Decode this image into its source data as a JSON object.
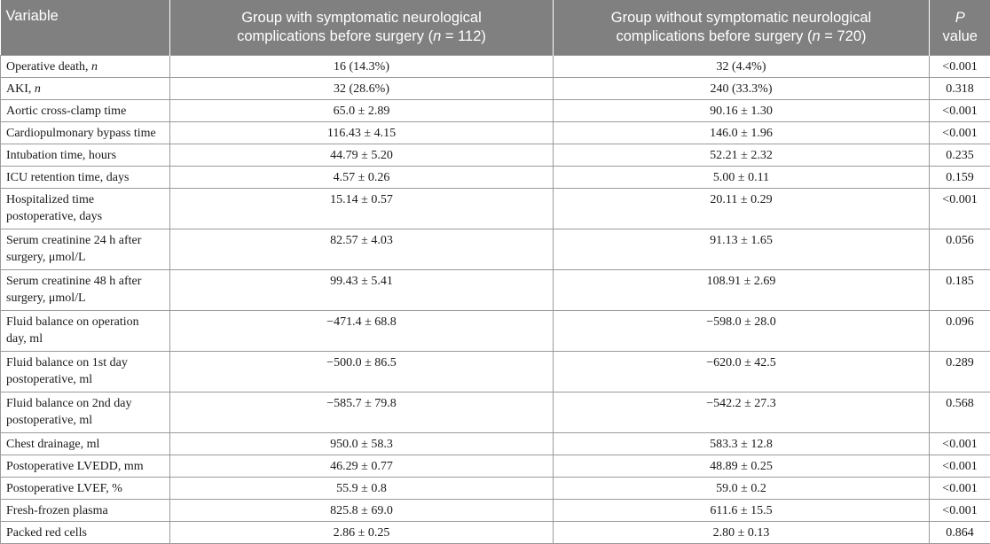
{
  "table": {
    "headers": {
      "variable": "Variable",
      "group_with_line1": "Group with symptomatic neurological",
      "group_with_line2_pre": "complications before surgery (",
      "group_with_n": "n",
      "group_with_line2_post": " = 112)",
      "group_without_line1": "Group without symptomatic neurological",
      "group_without_line2_pre": "complications before surgery (",
      "group_without_n": "n",
      "group_without_line2_post": " = 720)",
      "p_line1": "P",
      "p_line2": "value"
    },
    "rows": [
      {
        "variable": "Operative death, ",
        "variable_italic": "n",
        "with": "16 (14.3%)",
        "without": "32 (4.4%)",
        "p": "<0.001"
      },
      {
        "variable": "AKI, ",
        "variable_italic": "n",
        "with": "32 (28.6%)",
        "without": "240 (33.3%)",
        "p": "0.318"
      },
      {
        "variable": "Aortic cross-clamp time",
        "with": "65.0 ± 2.89",
        "without": "90.16 ± 1.30",
        "p": "<0.001"
      },
      {
        "variable": "Cardiopulmonary bypass time",
        "with": "116.43 ± 4.15",
        "without": "146.0 ± 1.96",
        "p": "<0.001"
      },
      {
        "variable": "Intubation time, hours",
        "with": "44.79 ± 5.20",
        "without": "52.21 ± 2.32",
        "p": "0.235"
      },
      {
        "variable": "ICU retention time, days",
        "with": "4.57 ± 0.26",
        "without": "5.00 ± 0.11",
        "p": "0.159"
      },
      {
        "variable_line1": "Hospitalized time",
        "variable_line2": "postoperative, days",
        "with": "15.14 ± 0.57",
        "without": "20.11 ± 0.29",
        "p": "<0.001"
      },
      {
        "variable_line1": "Serum creatinine 24 h after",
        "variable_line2": "surgery, μmol/L",
        "with": "82.57 ± 4.03",
        "without": "91.13 ± 1.65",
        "p": "0.056"
      },
      {
        "variable_line1": "Serum creatinine 48 h after",
        "variable_line2": "surgery, μmol/L",
        "with": "99.43 ± 5.41",
        "without": "108.91 ± 2.69",
        "p": "0.185"
      },
      {
        "variable_line1": "Fluid balance on operation",
        "variable_line2": "day, ml",
        "with": "−471.4 ± 68.8",
        "without": "−598.0 ± 28.0",
        "p": "0.096"
      },
      {
        "variable_line1": "Fluid balance on 1st day",
        "variable_line2": "postoperative, ml",
        "with": "−500.0 ± 86.5",
        "without": "−620.0 ± 42.5",
        "p": "0.289"
      },
      {
        "variable_line1": "Fluid balance on 2nd day",
        "variable_line2": "postoperative, ml",
        "with": "−585.7 ± 79.8",
        "without": "−542.2 ± 27.3",
        "p": "0.568"
      },
      {
        "variable": "Chest drainage, ml",
        "with": "950.0 ± 58.3",
        "without": "583.3 ± 12.8",
        "p": "<0.001"
      },
      {
        "variable": "Postoperative LVEDD, mm",
        "with": "46.29 ± 0.77",
        "without": "48.89 ± 0.25",
        "p": "<0.001"
      },
      {
        "variable": "Postoperative LVEF, %",
        "with": "55.9 ± 0.8",
        "without": "59.0 ± 0.2",
        "p": "<0.001"
      },
      {
        "variable": "Fresh-frozen plasma",
        "with": "825.8 ± 69.0",
        "without": "611.6 ± 15.5",
        "p": "<0.001"
      },
      {
        "variable": "Packed red cells",
        "with": "2.86 ± 0.25",
        "without": "2.80 ± 0.13",
        "p": "0.864"
      }
    ]
  }
}
